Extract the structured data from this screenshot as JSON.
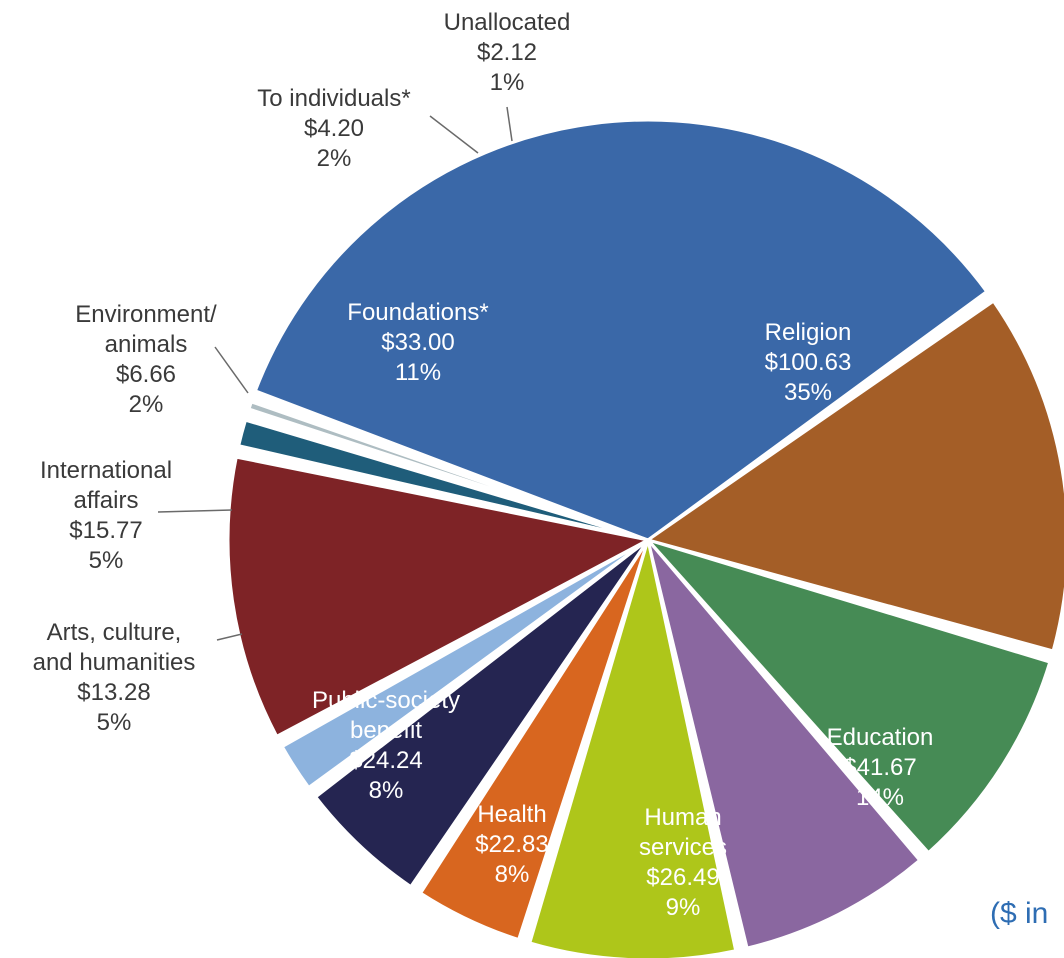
{
  "chart_data": {
    "type": "pie",
    "unit_note": "($ in",
    "slices": [
      {
        "name": "Religion",
        "lines": [
          "Religion"
        ],
        "amount": "$100.63",
        "pct": "35%",
        "value": 100.63,
        "color": "#3a68a8",
        "label_style": "inside"
      },
      {
        "name": "Education",
        "lines": [
          "Education"
        ],
        "amount": "$41.67",
        "pct": "14%",
        "value": 41.67,
        "color": "#a45e27",
        "label_style": "inside"
      },
      {
        "name": "Human services",
        "lines": [
          "Human",
          "services"
        ],
        "amount": "$26.49",
        "pct": "9%",
        "value": 26.49,
        "color": "#468b55",
        "label_style": "inside"
      },
      {
        "name": "Health",
        "lines": [
          "Health"
        ],
        "amount": "$22.83",
        "pct": "8%",
        "value": 22.83,
        "color": "#8a67a0",
        "label_style": "inside"
      },
      {
        "name": "Public-society benefit",
        "lines": [
          "Public-society",
          "benefit"
        ],
        "amount": "$24.24",
        "pct": "8%",
        "value": 24.24,
        "color": "#aec61a",
        "label_style": "inside"
      },
      {
        "name": "Arts, culture, and humanities",
        "lines": [
          "Arts, culture,",
          "and humanities"
        ],
        "amount": "$13.28",
        "pct": "5%",
        "value": 13.28,
        "color": "#d8661f",
        "label_style": "outside"
      },
      {
        "name": "International affairs",
        "lines": [
          "International",
          "affairs"
        ],
        "amount": "$15.77",
        "pct": "5%",
        "value": 15.77,
        "color": "#252551",
        "label_style": "outside"
      },
      {
        "name": "Environment/ animals",
        "lines": [
          "Environment/",
          "animals"
        ],
        "amount": "$6.66",
        "pct": "2%",
        "value": 6.66,
        "color": "#8db3de",
        "label_style": "outside"
      },
      {
        "name": "Foundations*",
        "lines": [
          "Foundations*"
        ],
        "amount": "$33.00",
        "pct": "11%",
        "value": 33.0,
        "color": "#7e2326",
        "label_style": "inside"
      },
      {
        "name": "To individuals*",
        "lines": [
          "To individuals*"
        ],
        "amount": "$4.20",
        "pct": "2%",
        "value": 4.2,
        "color": "#1f5d7a",
        "label_style": "outside"
      },
      {
        "name": "Unallocated",
        "lines": [
          "Unallocated"
        ],
        "amount": "$2.12",
        "pct": "1%",
        "value": 2.12,
        "color": "#aebdc2",
        "label_style": "outside"
      }
    ]
  }
}
